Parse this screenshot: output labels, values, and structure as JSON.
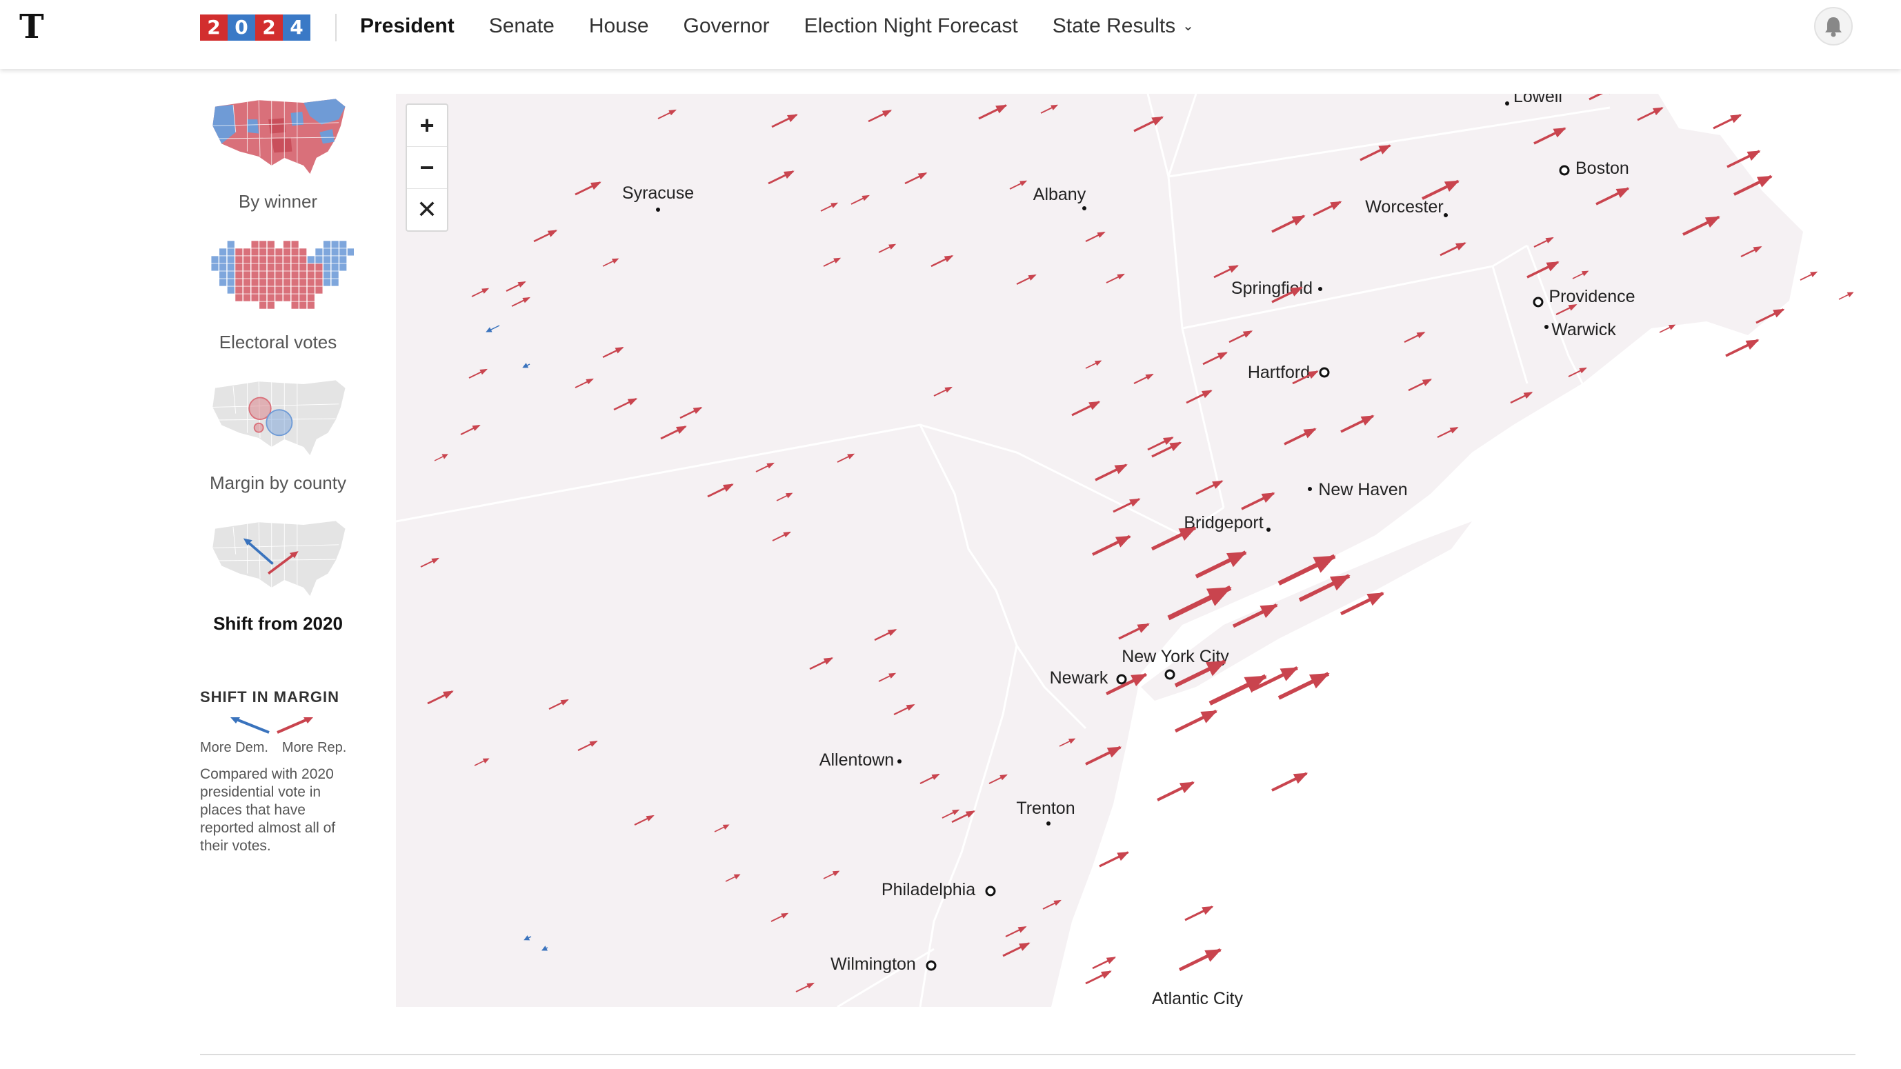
{
  "header": {
    "logo": "T",
    "year_digits": [
      "2",
      "0",
      "2",
      "4"
    ],
    "year_colors": [
      "#d22e2e",
      "#3a79c6",
      "#d22e2e",
      "#3a79c6"
    ],
    "nav": [
      {
        "label": "President",
        "active": true
      },
      {
        "label": "Senate"
      },
      {
        "label": "House"
      },
      {
        "label": "Governor"
      },
      {
        "label": "Election Night Forecast"
      },
      {
        "label": "State Results",
        "dropdown": true
      }
    ],
    "bell_icon": "bell-icon"
  },
  "sidebar": {
    "modes": [
      {
        "label": "By winner",
        "icon": "us-winner-map-icon"
      },
      {
        "label": "Electoral votes",
        "icon": "electoral-cartogram-icon"
      },
      {
        "label": "Margin by county",
        "icon": "county-bubble-map-icon"
      },
      {
        "label": "Shift from 2020",
        "icon": "shift-arrow-map-icon",
        "active": true
      }
    ]
  },
  "legend": {
    "title": "SHIFT IN MARGIN",
    "dem_label": "More Dem.",
    "rep_label": "More Rep.",
    "description": "Compared with 2020 presidential vote in places that have reported almost all of their votes.",
    "dem_color": "#3a73bd",
    "rep_color": "#c9444e"
  },
  "map": {
    "zoom_in": "+",
    "zoom_out": "−",
    "reset": "✕",
    "land_color": "#f5f1f3",
    "border_color": "#ffffff",
    "cities": [
      {
        "name": "Lowell"
      },
      {
        "name": "Boston"
      },
      {
        "name": "Syracuse"
      },
      {
        "name": "Albany"
      },
      {
        "name": "Worcester"
      },
      {
        "name": "Springfield"
      },
      {
        "name": "Providence"
      },
      {
        "name": "Warwick"
      },
      {
        "name": "Hartford"
      },
      {
        "name": "New Haven"
      },
      {
        "name": "Bridgeport"
      },
      {
        "name": "New York City"
      },
      {
        "name": "Newark"
      },
      {
        "name": "Allentown"
      },
      {
        "name": "Trenton"
      },
      {
        "name": "Philadelphia"
      },
      {
        "name": "Wilmington"
      },
      {
        "name": "Atlantic City"
      }
    ]
  }
}
